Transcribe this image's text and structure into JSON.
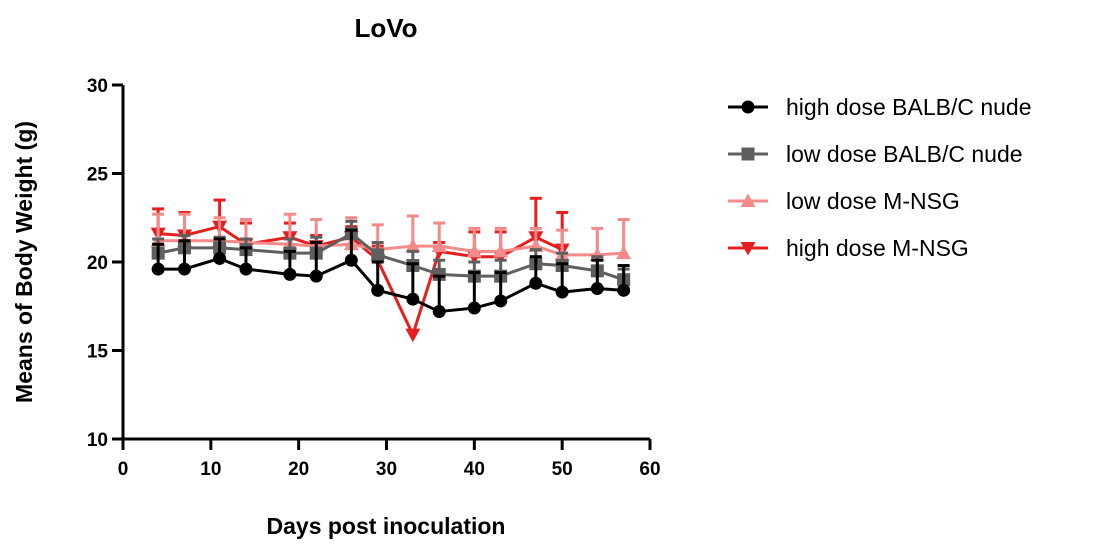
{
  "chart_data": {
    "type": "line",
    "title": "LoVo",
    "xlabel": "Days post inoculation",
    "ylabel": "Means of Body Weight (g)",
    "xlim": [
      0,
      60
    ],
    "ylim": [
      10,
      30
    ],
    "xticks": [
      0,
      10,
      20,
      30,
      40,
      50,
      60
    ],
    "yticks": [
      10,
      15,
      20,
      25,
      30
    ],
    "grid": false,
    "legend_position": "right",
    "x": [
      4,
      7,
      11,
      14,
      19,
      22,
      26,
      29,
      33,
      36,
      40,
      43,
      47,
      50,
      54,
      57
    ],
    "series": [
      {
        "name": "high dose BALB/C nude",
        "color": "#000000",
        "marker": "circle",
        "values": [
          19.6,
          19.6,
          20.2,
          19.6,
          19.3,
          19.2,
          20.1,
          18.4,
          17.9,
          17.2,
          17.4,
          17.8,
          18.8,
          18.3,
          18.5,
          18.4
        ],
        "errors": [
          1.4,
          1.6,
          1.1,
          1.2,
          1.3,
          1.9,
          1.7,
          1.6,
          2.0,
          2.0,
          2.0,
          1.6,
          1.5,
          1.6,
          1.6,
          1.4
        ]
      },
      {
        "name": "low dose BALB/C nude",
        "color": "#5f5f5f",
        "marker": "square",
        "values": [
          20.5,
          20.8,
          20.8,
          20.7,
          20.5,
          20.5,
          21.6,
          20.4,
          19.8,
          19.3,
          19.2,
          19.2,
          19.9,
          19.8,
          19.5,
          19.0
        ],
        "errors": [
          0.8,
          0.7,
          0.6,
          0.6,
          0.8,
          0.9,
          0.7,
          0.7,
          0.8,
          0.8,
          0.8,
          0.9,
          0.8,
          0.7,
          0.8,
          0.6
        ]
      },
      {
        "name": "low dose M-NSG",
        "color": "#f48a8a",
        "marker": "triangle-up",
        "values": [
          21.2,
          21.2,
          21.2,
          21.1,
          21.0,
          20.9,
          21.0,
          20.7,
          20.9,
          20.9,
          20.6,
          20.6,
          20.9,
          20.4,
          20.4,
          20.5
        ],
        "errors": [
          1.5,
          1.5,
          1.3,
          1.3,
          1.7,
          1.5,
          1.5,
          1.4,
          1.7,
          1.3,
          1.3,
          1.3,
          1.0,
          1.4,
          1.5,
          1.9
        ]
      },
      {
        "name": "high dose M-NSG",
        "color": "#e61e1e",
        "marker": "triangle-down",
        "values": [
          21.6,
          21.5,
          22.0,
          21.0,
          21.4,
          20.9,
          21.4,
          20.1,
          15.9,
          20.6,
          20.3,
          20.3,
          21.4,
          20.7,
          null,
          null
        ],
        "errors": [
          1.4,
          1.3,
          1.5,
          1.2,
          0.8,
          0.6,
          0.6,
          0.8,
          0,
          0.5,
          1.4,
          1.4,
          2.2,
          2.1,
          0,
          0
        ]
      }
    ]
  }
}
